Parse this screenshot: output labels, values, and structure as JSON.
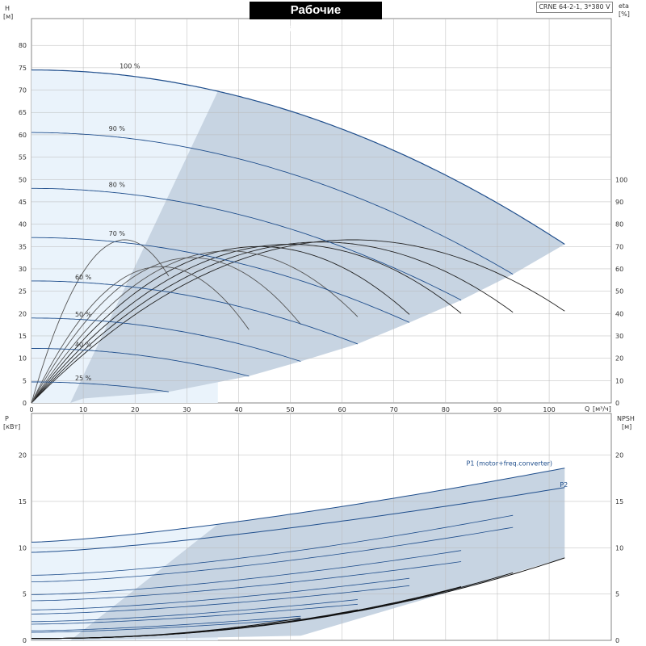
{
  "header": {
    "title": "Рабочие характеристики",
    "model": "CRNE 64-2-1, 3*380 V"
  },
  "chart_data": [
    {
      "type": "line",
      "name": "head",
      "y_axis_left": {
        "label": "H",
        "unit": "[м]",
        "ticks": [
          0,
          5,
          10,
          15,
          20,
          25,
          30,
          35,
          40,
          45,
          50,
          55,
          60,
          65,
          70,
          75,
          80
        ],
        "ylim": [
          0,
          86
        ]
      },
      "y_axis_right": {
        "label": "eta",
        "unit": "[%]",
        "ticks": [
          0,
          10,
          20,
          30,
          40,
          50,
          60,
          70,
          80,
          90,
          100
        ]
      },
      "x_axis": {
        "label": "Q",
        "unit": "[м³/ч]",
        "ticks": [
          0,
          10,
          20,
          30,
          40,
          50,
          60,
          70,
          80,
          90,
          100
        ],
        "xlim": [
          0,
          112
        ]
      },
      "grid": true,
      "speed_curves": [
        {
          "label": "100 %",
          "shutoff_head": 74.5,
          "max_flow": 103,
          "end_head": 35.5
        },
        {
          "label": "90 %",
          "shutoff_head": 60.5,
          "max_flow": 93,
          "end_head": 28.8
        },
        {
          "label": "80 %",
          "shutoff_head": 48,
          "max_flow": 83,
          "end_head": 23
        },
        {
          "label": "70 %",
          "shutoff_head": 37,
          "max_flow": 73,
          "end_head": 18
        },
        {
          "label": "60 %",
          "shutoff_head": 27.3,
          "max_flow": 63,
          "end_head": 13.2
        },
        {
          "label": "50 %",
          "shutoff_head": 19,
          "max_flow": 52,
          "end_head": 9.3
        },
        {
          "label": "40 %",
          "shutoff_head": 12.2,
          "max_flow": 42,
          "end_head": 6
        },
        {
          "label": "25 %",
          "shutoff_head": 4.7,
          "max_flow": 26.5,
          "end_head": 2.5
        }
      ],
      "efficiency_curves": [
        {
          "max_flow": 103,
          "peak_q": 62,
          "peak_eta": 73
        },
        {
          "max_flow": 93,
          "peak_q": 56,
          "peak_eta": 72
        },
        {
          "max_flow": 83,
          "peak_q": 50,
          "peak_eta": 71
        },
        {
          "max_flow": 73,
          "peak_q": 44,
          "peak_eta": 70
        },
        {
          "max_flow": 63,
          "peak_q": 38,
          "peak_eta": 68
        },
        {
          "max_flow": 52,
          "peak_q": 31,
          "peak_eta": 65
        },
        {
          "max_flow": 42,
          "peak_q": 25,
          "peak_eta": 61
        },
        {
          "max_flow": 26.5,
          "peak_q": 18,
          "peak_eta": 73
        }
      ]
    },
    {
      "type": "line",
      "name": "power",
      "y_axis_left": {
        "label": "P",
        "unit": "[кВт]",
        "ticks": [
          0,
          5,
          10,
          15,
          20
        ],
        "ylim": [
          0,
          24.5
        ]
      },
      "y_axis_right": {
        "label": "NPSH",
        "unit": "[м]",
        "ticks": [
          0,
          5,
          10,
          15,
          20
        ]
      },
      "x_axis": {
        "xlim": [
          0,
          112
        ]
      },
      "grid": true,
      "series": [
        {
          "name": "P1 (motor+freq.converter)",
          "values_start_end": [
            10.6,
            18.6
          ],
          "max_flow": 103
        },
        {
          "name": "P2",
          "values_start_end": [
            9.5,
            16.5
          ],
          "max_flow": 103
        }
      ],
      "reduced_speed_power_ends": [
        {
          "max_flow": 93,
          "end": 13.5
        },
        {
          "max_flow": 93,
          "end": 12.2
        },
        {
          "max_flow": 83,
          "end": 9.7
        },
        {
          "max_flow": 83,
          "end": 8.5
        },
        {
          "max_flow": 73,
          "end": 6.7
        },
        {
          "max_flow": 73,
          "end": 5.9
        },
        {
          "max_flow": 63,
          "end": 4.4
        },
        {
          "max_flow": 63,
          "end": 3.9
        },
        {
          "max_flow": 52,
          "end": 2.6
        },
        {
          "max_flow": 52,
          "end": 2.3
        }
      ],
      "npsh_curves": [
        {
          "max_flow": 103,
          "end": 8.9
        },
        {
          "max_flow": 93,
          "end": 7.3
        },
        {
          "max_flow": 83,
          "end": 5.8
        },
        {
          "max_flow": 73,
          "end": 4.4
        },
        {
          "max_flow": 63,
          "end": 3.3
        },
        {
          "max_flow": 52,
          "end": 2.4
        }
      ]
    }
  ]
}
